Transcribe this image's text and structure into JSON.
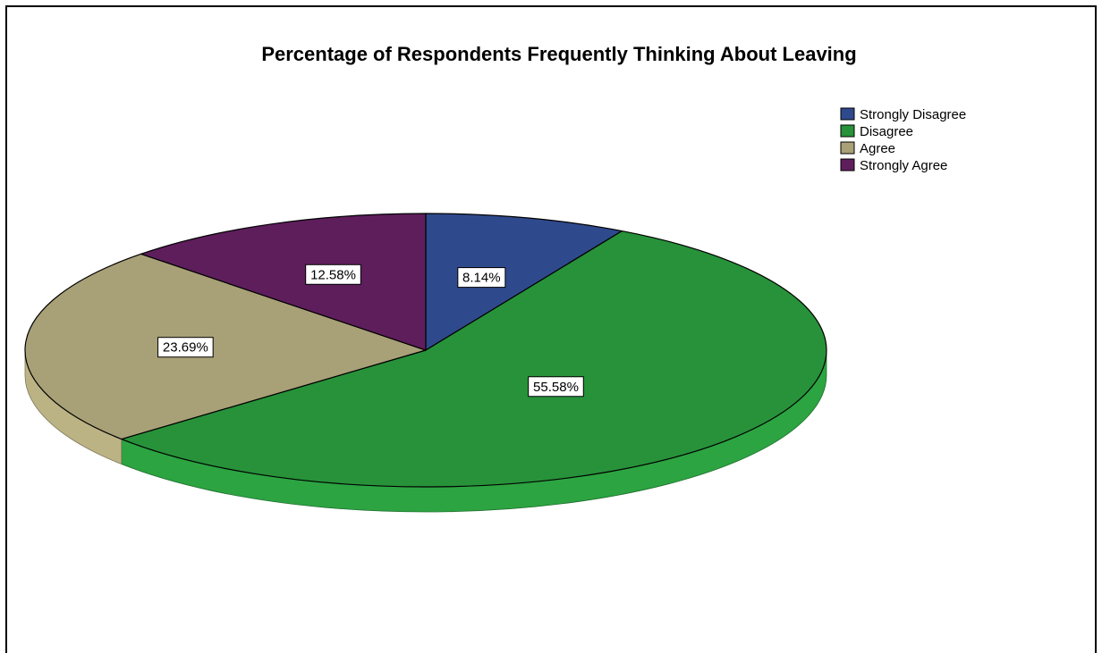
{
  "chart_data": {
    "type": "pie",
    "title": "Percentage of Respondents Frequently Thinking About Leaving",
    "slices": [
      {
        "label": "Strongly Disagree",
        "value": 8.14,
        "display": "8.14%",
        "color": "#2f4a8c"
      },
      {
        "label": "Disagree",
        "value": 55.58,
        "display": "55.58%",
        "color": "#27923a"
      },
      {
        "label": "Agree",
        "value": 23.69,
        "display": "23.69%",
        "color": "#a8a077"
      },
      {
        "label": "Strongly Agree",
        "value": 12.58,
        "display": "12.58%",
        "color": "#5e1e5c"
      }
    ],
    "legend_position": "top-right",
    "style": "3d-tilted"
  }
}
